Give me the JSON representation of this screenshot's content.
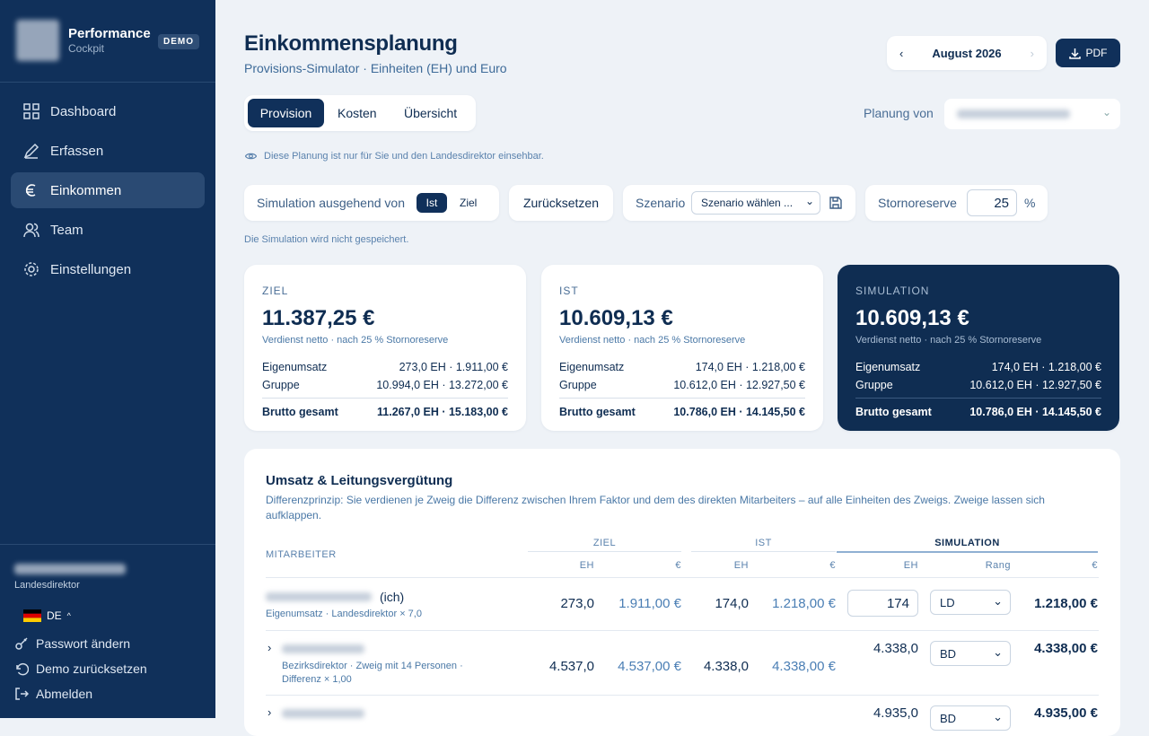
{
  "sidebar": {
    "brand": {
      "title": "Performance",
      "subtitle": "Cockpit",
      "badge": "DEMO"
    },
    "nav": [
      "Dashboard",
      "Erfassen",
      "Einkommen",
      "Team",
      "Einstellungen"
    ],
    "user": {
      "role": "Landesdirektor"
    },
    "language": "DE",
    "actions": [
      "Passwort ändern",
      "Demo zurücksetzen",
      "Abmelden"
    ]
  },
  "header": {
    "title": "Einkommensplanung",
    "subtitle": "Provisions-Simulator · Einheiten (EH) und Euro",
    "month": "August 2026",
    "pdf": "PDF"
  },
  "tabs": [
    "Provision",
    "Kosten",
    "Übersicht"
  ],
  "planning_label": "Planung von",
  "visibility_note": "Diese Planung ist nur für Sie und den Landesdirektor einsehbar.",
  "controls": {
    "simulation_label": "Simulation ausgehend von",
    "basis_options": [
      "Ist",
      "Ziel"
    ],
    "reset": "Zurücksetzen",
    "scenario_label": "Szenario",
    "scenario_select": "Szenario wählen ...",
    "storno_label": "Stornoreserve",
    "storno_value": "25",
    "storno_unit": "%"
  },
  "save_note": "Die Simulation wird nicht gespeichert.",
  "cards": [
    {
      "label": "ZIEL",
      "amount": "11.387,25 €",
      "note": "Verdienst netto · nach 25 % Stornoreserve",
      "rows": [
        [
          "Eigenumsatz",
          "273,0 EH · 1.911,00 €"
        ],
        [
          "Gruppe",
          "10.994,0 EH · 13.272,00 €"
        ],
        [
          "Brutto gesamt",
          "11.267,0 EH · 15.183,00 €"
        ]
      ]
    },
    {
      "label": "IST",
      "amount": "10.609,13 €",
      "note": "Verdienst netto · nach 25 % Stornoreserve",
      "rows": [
        [
          "Eigenumsatz",
          "174,0 EH · 1.218,00 €"
        ],
        [
          "Gruppe",
          "10.612,0 EH · 12.927,50 €"
        ],
        [
          "Brutto gesamt",
          "10.786,0 EH · 14.145,50 €"
        ]
      ]
    },
    {
      "label": "SIMULATION",
      "amount": "10.609,13 €",
      "note": "Verdienst netto · nach 25 % Stornoreserve",
      "rows": [
        [
          "Eigenumsatz",
          "174,0 EH · 1.218,00 €"
        ],
        [
          "Gruppe",
          "10.612,0 EH · 12.927,50 €"
        ],
        [
          "Brutto gesamt",
          "10.786,0 EH · 14.145,50 €"
        ]
      ]
    }
  ],
  "table_section": {
    "title": "Umsatz & Leitungsvergütung",
    "description": "Differenzprinzip: Sie verdienen je Zweig die Differenz zwischen Ihrem Faktor und dem des direkten Mitarbeiters – auf alle Einheiten des Zweigs. Zweige lassen sich aufklappen.",
    "columns": {
      "employee": "MITARBEITER",
      "groups": [
        "ZIEL",
        "IST",
        "SIMULATION"
      ],
      "sub": [
        "EH",
        "€",
        "EH",
        "€",
        "EH",
        "Rang",
        "€"
      ]
    },
    "rows": [
      {
        "name_suffix": "(ich)",
        "detail": "Eigenumsatz · Landesdirektor × 7,0",
        "ziel_eh": "273,0",
        "ziel_eur": "1.911,00 €",
        "ist_eh": "174,0",
        "ist_eur": "1.218,00 €",
        "sim_eh": "174",
        "rang": "LD",
        "sim_eur": "1.218,00 €"
      },
      {
        "detail": "Bezirksdirektor · Zweig mit 14 Personen · Differenz × 1,00",
        "ziel_eh": "4.537,0",
        "ziel_eur": "4.537,00 €",
        "ist_eh": "4.338,0",
        "ist_eur": "4.338,00 €",
        "sim_eh": "4.338,0",
        "rang": "BD",
        "sim_eur": "4.338,00 €"
      },
      {
        "sim_eh": "4.935,0",
        "rang": "BD",
        "sim_eur": "4.935,00 €"
      }
    ]
  }
}
